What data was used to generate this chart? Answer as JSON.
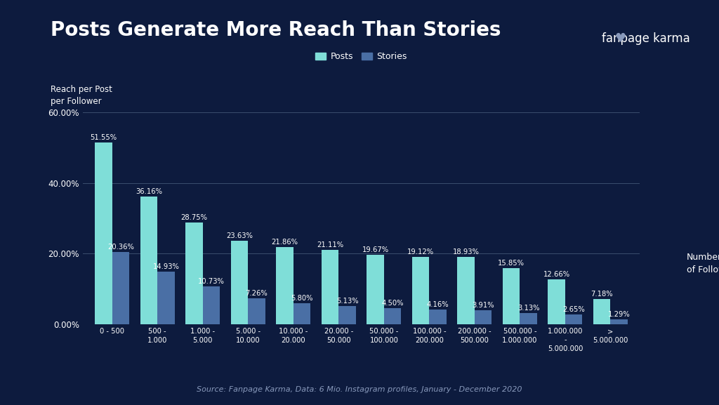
{
  "title": "Posts Generate More Reach Than Stories",
  "ylabel": "Reach per Post\nper Follower",
  "xlabel_right": "Number\nof Followers",
  "source": "Source: Fanpage Karma, Data: 6 Mio. Instagram profiles, January - December 2020",
  "categories": [
    "0 - 500",
    "500 -\n1.000",
    "1.000 -\n5.000",
    "5.000 -\n10.000",
    "10.000 -\n20.000",
    "20.000 -\n50.000",
    "50.000 -\n100.000",
    "100.000 -\n200.000",
    "200.000 -\n500.000",
    "500.000 -\n1.000.000",
    "1.000.000\n-\n5.000.000",
    ">\n5.000.000"
  ],
  "posts_values": [
    51.55,
    36.16,
    28.75,
    23.63,
    21.86,
    21.11,
    19.67,
    19.12,
    18.93,
    15.85,
    12.66,
    7.18
  ],
  "stories_values": [
    20.36,
    14.93,
    10.73,
    7.26,
    5.8,
    5.13,
    4.5,
    4.16,
    3.91,
    3.13,
    2.65,
    1.29
  ],
  "posts_labels": [
    "51.55%",
    "36.16%",
    "28.75%",
    "23.63%",
    "21.86%",
    "21.11%",
    "19.67%",
    "19.12%",
    "18.93%",
    "15.85%",
    "12.66%",
    "7.18%"
  ],
  "stories_labels": [
    "20.36%",
    "14.93%",
    "10.73%",
    "7.26%",
    "5.80%",
    "5.13%",
    "4.50%",
    "4.16%",
    "3.91%",
    "3.13%",
    "2.65%",
    "1.29%"
  ],
  "posts_color": "#7FDED8",
  "stories_color": "#4A6FA5",
  "background_color": "#0D1B3E",
  "text_color": "#FFFFFF",
  "grid_color": "#3A4E6E",
  "ylim": [
    0,
    62
  ],
  "yticks": [
    0,
    20,
    40,
    60
  ],
  "ytick_labels": [
    "0.00%",
    "20.00%",
    "40.00%",
    "60.00%"
  ],
  "title_fontsize": 20,
  "label_fontsize": 7.2,
  "axis_fontsize": 8.5,
  "legend_fontsize": 9
}
